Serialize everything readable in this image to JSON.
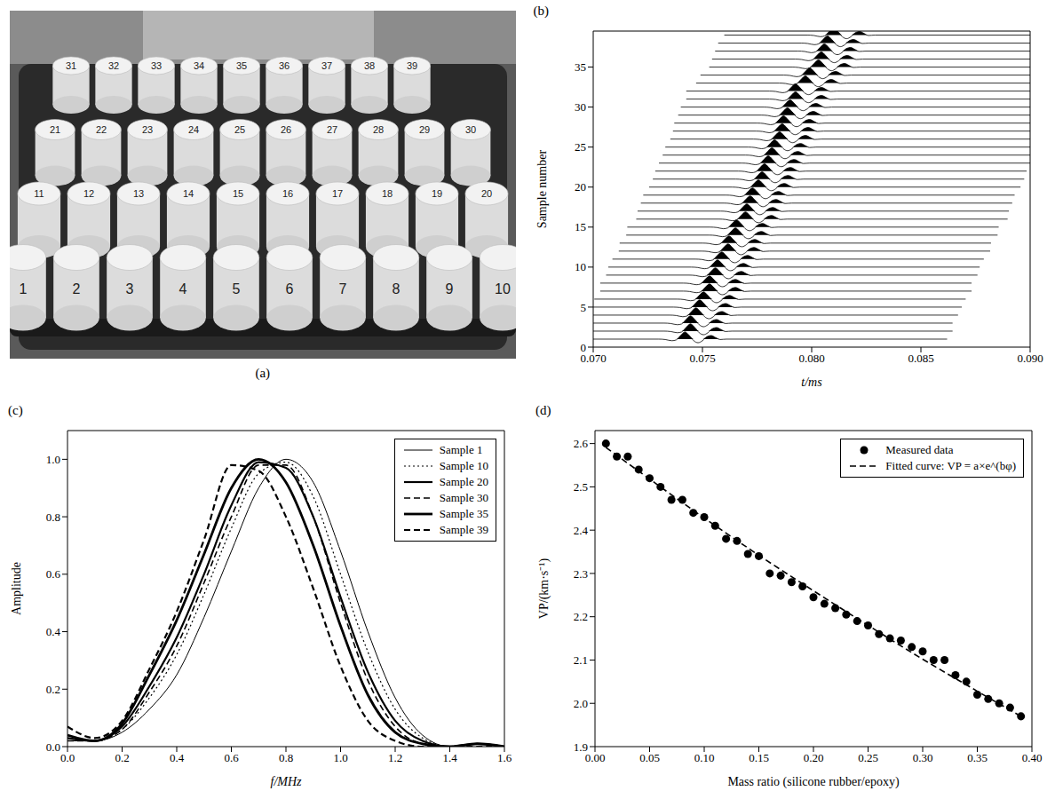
{
  "panel_a": {
    "title": "(a)",
    "rows": [
      [
        "31",
        "32",
        "33",
        "34",
        "35",
        "36",
        "37",
        "38",
        "39"
      ],
      [
        "21",
        "22",
        "23",
        "24",
        "25",
        "26",
        "27",
        "28",
        "29",
        "30"
      ],
      [
        "11",
        "12",
        "13",
        "14",
        "15",
        "16",
        "17",
        "18",
        "19",
        "20"
      ],
      [
        "1",
        "2",
        "3",
        "4",
        "5",
        "6",
        "7",
        "8",
        "9",
        "10"
      ]
    ]
  },
  "chart_data": [
    {
      "type": "wiggle",
      "title": "(b)",
      "xlabel": "t/ms",
      "ylabel": "Sample number",
      "color": "#000000",
      "grid": false,
      "xlim": [
        0.07,
        0.09
      ],
      "xticks": [
        {
          "value": 0.07,
          "label": "0.070"
        },
        {
          "value": 0.075,
          "label": "0.075"
        },
        {
          "value": 0.08,
          "label": "0.080"
        },
        {
          "value": 0.085,
          "label": "0.085"
        },
        {
          "value": 0.09,
          "label": "0.090"
        }
      ],
      "ylim": [
        0,
        39.5
      ],
      "yticks": [
        0,
        5,
        10,
        15,
        20,
        25,
        30,
        35
      ],
      "wavelet": {
        "t": [
          -0.005,
          -0.0012,
          -0.0009,
          -0.0006,
          -0.0004,
          -0.0002,
          0,
          0.0002,
          0.0004,
          0.0006,
          0.0008,
          0.001,
          0.0012,
          0.0014,
          0.0016,
          0.0019,
          0.012
        ],
        "amplitude": [
          0,
          0,
          -0.05,
          -0.2,
          -0.1,
          0.45,
          0.9,
          0.45,
          -0.2,
          -0.45,
          -0.2,
          0.3,
          0.45,
          0.2,
          -0.05,
          0,
          0
        ]
      },
      "samples": [
        1,
        2,
        3,
        4,
        5,
        6,
        7,
        8,
        9,
        10,
        11,
        12,
        13,
        14,
        15,
        16,
        17,
        18,
        19,
        20,
        21,
        22,
        23,
        24,
        25,
        26,
        27,
        28,
        29,
        30,
        31,
        32,
        33,
        34,
        35,
        36,
        37,
        38,
        39
      ],
      "peak_times": [
        0.0742,
        0.07445,
        0.07445,
        0.0747,
        0.07487,
        0.07505,
        0.07532,
        0.07532,
        0.07559,
        0.07569,
        0.07588,
        0.07617,
        0.07621,
        0.07651,
        0.07656,
        0.07697,
        0.07703,
        0.07718,
        0.07729,
        0.07756,
        0.07773,
        0.07784,
        0.07801,
        0.07818,
        0.0783,
        0.07853,
        0.07865,
        0.07871,
        0.07889,
        0.07901,
        0.07926,
        0.07926,
        0.07971,
        0.07991,
        0.08031,
        0.08044,
        0.08058,
        0.08072,
        0.081
      ]
    },
    {
      "type": "line",
      "title": "(c)",
      "xlabel": "f/MHz",
      "ylabel": "Amplitude",
      "grid": false,
      "legend": "upper right",
      "xlim": [
        0,
        1.6
      ],
      "xticks": [
        {
          "value": 0,
          "label": "0.0"
        },
        0.2,
        0.4,
        0.6,
        0.8,
        {
          "value": 1,
          "label": "1.0"
        },
        1.2,
        1.4,
        1.6
      ],
      "ylim": [
        0,
        1.1
      ],
      "yticks": [
        {
          "value": 0,
          "label": "0.0"
        },
        0.2,
        0.4,
        0.6,
        0.8,
        {
          "value": 1,
          "label": "1.0"
        }
      ],
      "x": [
        0,
        0.1,
        0.2,
        0.3,
        0.4,
        0.5,
        0.6,
        0.7,
        0.8,
        0.9,
        1,
        1.1,
        1.2,
        1.3,
        1.4,
        1.5,
        1.6
      ],
      "series": [
        {
          "name": "Sample 1",
          "color": "#000000",
          "line_style": "solid",
          "values": [
            0.02,
            0.02,
            0.05,
            0.13,
            0.25,
            0.45,
            0.68,
            0.9,
            1.0,
            0.92,
            0.68,
            0.4,
            0.17,
            0.04,
            0.0,
            0.01,
            0.0
          ]
        },
        {
          "name": "Sample 10",
          "color": "#000000",
          "line_style": "dotted",
          "values": [
            0.03,
            0.02,
            0.06,
            0.17,
            0.32,
            0.53,
            0.76,
            0.95,
            0.99,
            0.87,
            0.6,
            0.33,
            0.13,
            0.03,
            0.0,
            0.01,
            0.0
          ]
        },
        {
          "name": "Sample 20",
          "color": "#000000",
          "line_style": "solid",
          "values": [
            0.03,
            0.02,
            0.07,
            0.21,
            0.38,
            0.6,
            0.84,
            0.99,
            0.97,
            0.8,
            0.52,
            0.26,
            0.09,
            0.02,
            0.0,
            0.01,
            0.0
          ]
        },
        {
          "name": "Sample 30",
          "color": "#000000",
          "line_style": "dashed",
          "values": [
            0.02,
            0.02,
            0.06,
            0.19,
            0.35,
            0.57,
            0.8,
            0.98,
            0.98,
            0.8,
            0.5,
            0.23,
            0.07,
            0.01,
            0.0,
            0.01,
            0.0
          ]
        },
        {
          "name": "Sample 35",
          "color": "#000000",
          "line_style": "solid",
          "values": [
            0.04,
            0.02,
            0.08,
            0.25,
            0.44,
            0.67,
            0.9,
            1.0,
            0.92,
            0.7,
            0.42,
            0.18,
            0.05,
            0.01,
            0.0,
            0.01,
            0.0
          ]
        },
        {
          "name": "Sample 39",
          "color": "#000000",
          "line_style": "dashed",
          "values": [
            0.07,
            0.03,
            0.09,
            0.27,
            0.47,
            0.72,
            0.98,
            0.96,
            0.8,
            0.55,
            0.28,
            0.09,
            0.02,
            0.0,
            0.0,
            0.0,
            0.0
          ]
        }
      ]
    },
    {
      "type": "scatter",
      "title": "(d)",
      "xlabel": "Mass ratio (silicone rubber/epoxy)",
      "ylabel": "VP/(km·s⁻¹)",
      "grid": false,
      "legend": "upper right",
      "xlim": [
        0,
        0.4
      ],
      "xticks": [
        {
          "value": 0,
          "label": "0.00"
        },
        0.05,
        {
          "value": 0.1,
          "label": "0.10"
        },
        0.15,
        {
          "value": 0.2,
          "label": "0.20"
        },
        0.25,
        {
          "value": 0.3,
          "label": "0.30"
        },
        0.35,
        {
          "value": 0.4,
          "label": "0.40"
        }
      ],
      "ylim": [
        1.9,
        2.63
      ],
      "yticks": [
        1.9,
        {
          "value": 2,
          "label": "2.0"
        },
        2.1,
        2.2,
        2.3,
        2.4,
        2.5,
        2.6
      ],
      "series": [
        {
          "name": "Measured data",
          "type": "scatter",
          "marker": "circle",
          "color": "#000000",
          "x": [
            0.01,
            0.02,
            0.03,
            0.04,
            0.05,
            0.06,
            0.07,
            0.08,
            0.09,
            0.1,
            0.11,
            0.12,
            0.13,
            0.14,
            0.15,
            0.16,
            0.17,
            0.18,
            0.19,
            0.2,
            0.21,
            0.22,
            0.23,
            0.24,
            0.25,
            0.26,
            0.27,
            0.28,
            0.29,
            0.3,
            0.31,
            0.32,
            0.33,
            0.34,
            0.35,
            0.36,
            0.37,
            0.38,
            0.39
          ],
          "values": [
            2.6,
            2.57,
            2.57,
            2.54,
            2.52,
            2.5,
            2.47,
            2.47,
            2.44,
            2.43,
            2.41,
            2.38,
            2.375,
            2.345,
            2.34,
            2.3,
            2.295,
            2.28,
            2.27,
            2.245,
            2.23,
            2.22,
            2.205,
            2.19,
            2.18,
            2.16,
            2.15,
            2.145,
            2.13,
            2.12,
            2.1,
            2.1,
            2.065,
            2.05,
            2.02,
            2.01,
            2.0,
            1.99,
            1.97
          ]
        },
        {
          "name": "Fitted curve: VP = a×e^(bφ)",
          "type": "line",
          "line_style": "dashed",
          "color": "#000000",
          "x": [
            0.01,
            0.05,
            0.1,
            0.15,
            0.2,
            0.25,
            0.3,
            0.35,
            0.39
          ],
          "values": [
            2.591,
            2.518,
            2.428,
            2.342,
            2.26,
            2.18,
            2.102,
            2.028,
            1.97
          ]
        }
      ]
    }
  ]
}
